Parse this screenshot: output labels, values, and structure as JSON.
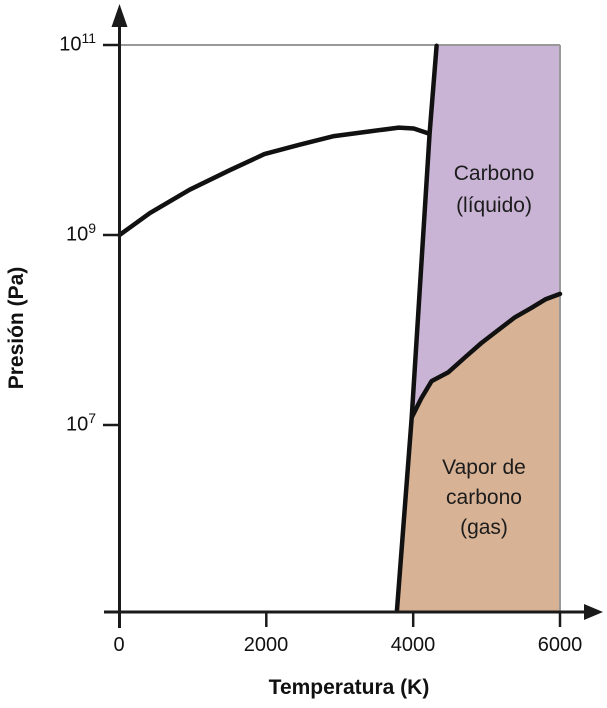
{
  "y_axis": {
    "label": "Presión (Pa)",
    "ticks": [
      {
        "base": "10",
        "exp": "7"
      },
      {
        "base": "10",
        "exp": "9"
      },
      {
        "base": "10",
        "exp": "11"
      }
    ]
  },
  "x_axis": {
    "label": "Temperatura (K)",
    "ticks": [
      "0",
      "2000",
      "4000",
      "6000"
    ]
  },
  "regions": [
    {
      "name": "liquid-carbon",
      "label_lines": [
        "Carbono",
        "(líquido)"
      ],
      "color": "#c9b4d6"
    },
    {
      "name": "carbon-vapor",
      "label_lines": [
        "Vapor de",
        "carbono",
        "(gas)"
      ],
      "color": "#d8b294"
    }
  ],
  "colors": {
    "boundary_line": "#111111",
    "frame_line": "#999999",
    "axis": "#1a1a1a",
    "text": "#111111"
  },
  "chart_data": {
    "type": "area",
    "description": "Diagrama de fases del carbono: presión (escala log10, Pa) frente a temperatura (K). Región púrpura = carbono líquido; región canela = vapor de carbono (gas); zona blanca a la izquierda = carbono sólido (sin etiqueta).",
    "xlabel": "Temperatura (K)",
    "ylabel": "Presión (Pa)",
    "x_range_K": [
      0,
      6000
    ],
    "x_ticks_K": [
      0,
      2000,
      4000,
      6000
    ],
    "y_scale": "log10",
    "y_ticks_Pa": [
      10000000.0,
      1000000000.0,
      100000000000.0
    ],
    "y_top_Pa": 100000000000.0,
    "grid": "off",
    "legend": "none",
    "triple_point": {
      "T_K": 3980,
      "P_Pa": 12000000.0
    },
    "boundaries": {
      "graphite_diamond_curve": [
        [
          0,
          1000000000.0
        ],
        [
          414,
          1700000000.0
        ],
        [
          956,
          3000000000.0
        ],
        [
          1498,
          4800000000.0
        ],
        [
          1973,
          7100000000.0
        ],
        [
          2448,
          8900000000.0
        ],
        [
          2922,
          11000000000.0
        ],
        [
          3397,
          12300000000.0
        ],
        [
          3804,
          13500000000.0
        ],
        [
          4007,
          13200000000.0
        ],
        [
          4211,
          11700000000.0
        ]
      ],
      "melting_sublimation_line": [
        [
          3779,
          110000.0
        ],
        [
          3980,
          12000000.0
        ],
        [
          4224,
          11700000000.0
        ],
        [
          4319,
          98000000000.0
        ]
      ],
      "liquid_gas_curve": [
        [
          3980,
          12000000.0
        ],
        [
          4110,
          19000000.0
        ],
        [
          4251,
          29000000.0
        ],
        [
          4480,
          36000000.0
        ],
        [
          4712,
          52000000.0
        ],
        [
          4930,
          73000000.0
        ],
        [
          5159,
          100000000.0
        ],
        [
          5380,
          135000000.0
        ],
        [
          5607,
          170000000.0
        ],
        [
          5800,
          210000000.0
        ],
        [
          6000,
          240000000.0
        ]
      ]
    }
  }
}
